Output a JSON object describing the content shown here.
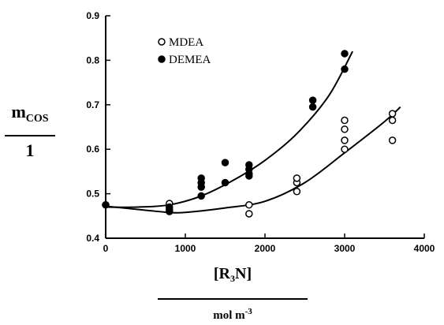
{
  "chart_data": {
    "type": "scatter",
    "xlim": [
      0,
      4000
    ],
    "ylim": [
      0.4,
      0.9
    ],
    "x_ticks": [
      0,
      1000,
      2000,
      3000,
      4000
    ],
    "y_ticks": [
      0.4,
      0.5,
      0.6,
      0.7,
      0.8,
      0.9
    ],
    "y_tick_labels": [
      "0.4",
      "0.5",
      "0.6",
      "0.7",
      "0.8",
      "0.9"
    ],
    "ylabel": {
      "numerator": "m",
      "subscript": "COS",
      "denominator": "1"
    },
    "xlabel": {
      "numerator_prefix": "[R",
      "subscript": "3",
      "numerator_suffix": "N]",
      "denominator_prefix": "mol m",
      "superscript": "-3"
    },
    "legend": {
      "position": "top-left"
    },
    "series": [
      {
        "name": "MDEA",
        "marker": "open-circle",
        "points": [
          [
            0,
            0.475
          ],
          [
            800,
            0.478
          ],
          [
            800,
            0.465
          ],
          [
            1800,
            0.475
          ],
          [
            1800,
            0.455
          ],
          [
            2400,
            0.505
          ],
          [
            2400,
            0.525
          ],
          [
            2400,
            0.535
          ],
          [
            3000,
            0.6
          ],
          [
            3000,
            0.62
          ],
          [
            3000,
            0.645
          ],
          [
            3000,
            0.665
          ],
          [
            3600,
            0.62
          ],
          [
            3600,
            0.665
          ],
          [
            3600,
            0.68
          ]
        ],
        "fit": [
          [
            0,
            0.472
          ],
          [
            500,
            0.463
          ],
          [
            800,
            0.458
          ],
          [
            1000,
            0.458
          ],
          [
            1500,
            0.468
          ],
          [
            2000,
            0.483
          ],
          [
            2500,
            0.525
          ],
          [
            3000,
            0.592
          ],
          [
            3500,
            0.662
          ],
          [
            3700,
            0.695
          ]
        ]
      },
      {
        "name": "DEMEA",
        "marker": "filled-circle",
        "points": [
          [
            0,
            0.475
          ],
          [
            800,
            0.47
          ],
          [
            800,
            0.46
          ],
          [
            1200,
            0.535
          ],
          [
            1200,
            0.525
          ],
          [
            1200,
            0.515
          ],
          [
            1200,
            0.495
          ],
          [
            1500,
            0.57
          ],
          [
            1500,
            0.525
          ],
          [
            1800,
            0.565
          ],
          [
            1800,
            0.555
          ],
          [
            1800,
            0.545
          ],
          [
            1800,
            0.54
          ],
          [
            2600,
            0.71
          ],
          [
            2600,
            0.695
          ],
          [
            3000,
            0.815
          ],
          [
            3000,
            0.78
          ]
        ],
        "fit": [
          [
            0,
            0.47
          ],
          [
            400,
            0.47
          ],
          [
            800,
            0.475
          ],
          [
            1200,
            0.495
          ],
          [
            1600,
            0.53
          ],
          [
            2000,
            0.575
          ],
          [
            2400,
            0.635
          ],
          [
            2800,
            0.72
          ],
          [
            3100,
            0.82
          ]
        ]
      }
    ]
  }
}
